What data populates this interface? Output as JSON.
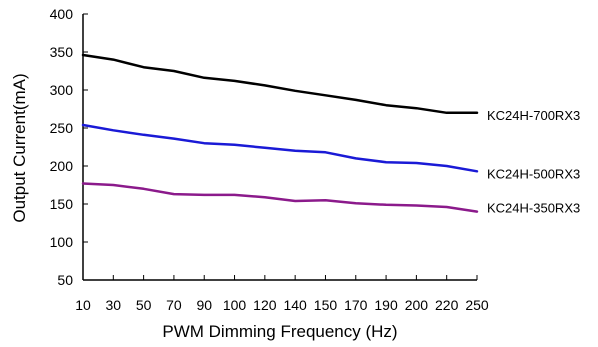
{
  "chart_data": {
    "type": "line",
    "title": "",
    "xlabel": "PWM Dimming Frequency (Hz)",
    "ylabel": "Output Current(mA)",
    "x": [
      10,
      30,
      50,
      70,
      90,
      100,
      120,
      140,
      150,
      170,
      190,
      200,
      220,
      250
    ],
    "x_tick_labels": [
      "10",
      "30",
      "50",
      "70",
      "90",
      "100",
      "120",
      "140",
      "150",
      "170",
      "190",
      "200",
      "220",
      "250"
    ],
    "ylim": [
      50,
      400
    ],
    "y_ticks": [
      50,
      100,
      150,
      200,
      250,
      300,
      350,
      400
    ],
    "grid": false,
    "legend": "right, labels beside line ends",
    "series": [
      {
        "name": "KC24H-700RX3",
        "color": "#000000",
        "values": [
          346,
          340,
          330,
          325,
          316,
          312,
          306,
          299,
          293,
          287,
          280,
          276,
          270,
          270
        ]
      },
      {
        "name": "KC24H-500RX3",
        "color": "#1a1ad6",
        "values": [
          254,
          247,
          241,
          236,
          230,
          228,
          224,
          220,
          218,
          210,
          205,
          204,
          200,
          193
        ]
      },
      {
        "name": "KC24H-350RX3",
        "color": "#8b1a8b",
        "values": [
          177,
          175,
          170,
          163,
          162,
          162,
          159,
          154,
          155,
          151,
          149,
          148,
          146,
          140
        ]
      }
    ]
  }
}
